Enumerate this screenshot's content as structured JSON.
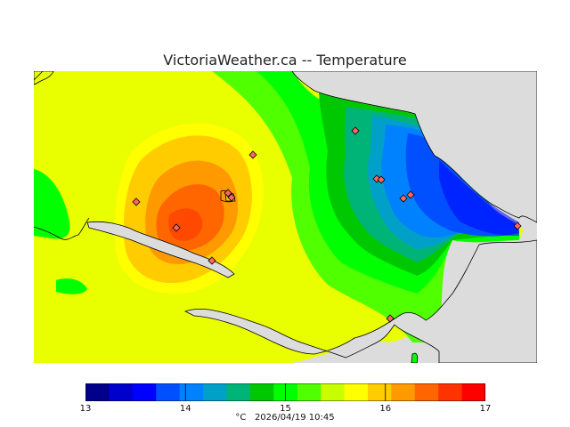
{
  "title": "VictoriaWeather.ca -- Temperature",
  "footer": {
    "unit": "°C",
    "timestamp": "2026/04/19 10:45"
  },
  "colorbar": {
    "min": 13,
    "max": 17,
    "tick_labels": [
      "13",
      "14",
      "15",
      "16",
      "17"
    ],
    "colors": [
      "#00008b",
      "#0000cd",
      "#0000ff",
      "#0050ff",
      "#0082ff",
      "#00a0c8",
      "#00b478",
      "#00c800",
      "#00ff00",
      "#50ff00",
      "#c8ff00",
      "#ffff00",
      "#ffcc00",
      "#ff9900",
      "#ff6600",
      "#ff3300",
      "#ff0000"
    ]
  },
  "map": {
    "land_color": "#dcdcdc",
    "stations": [
      {
        "id": "s1"
      },
      {
        "id": "s2"
      },
      {
        "id": "s3"
      },
      {
        "id": "s4"
      },
      {
        "id": "s5"
      },
      {
        "id": "s6"
      },
      {
        "id": "s7"
      },
      {
        "id": "s8"
      },
      {
        "id": "s9"
      },
      {
        "id": "s10"
      },
      {
        "id": "s11"
      },
      {
        "id": "s12"
      },
      {
        "id": "s13"
      }
    ]
  }
}
